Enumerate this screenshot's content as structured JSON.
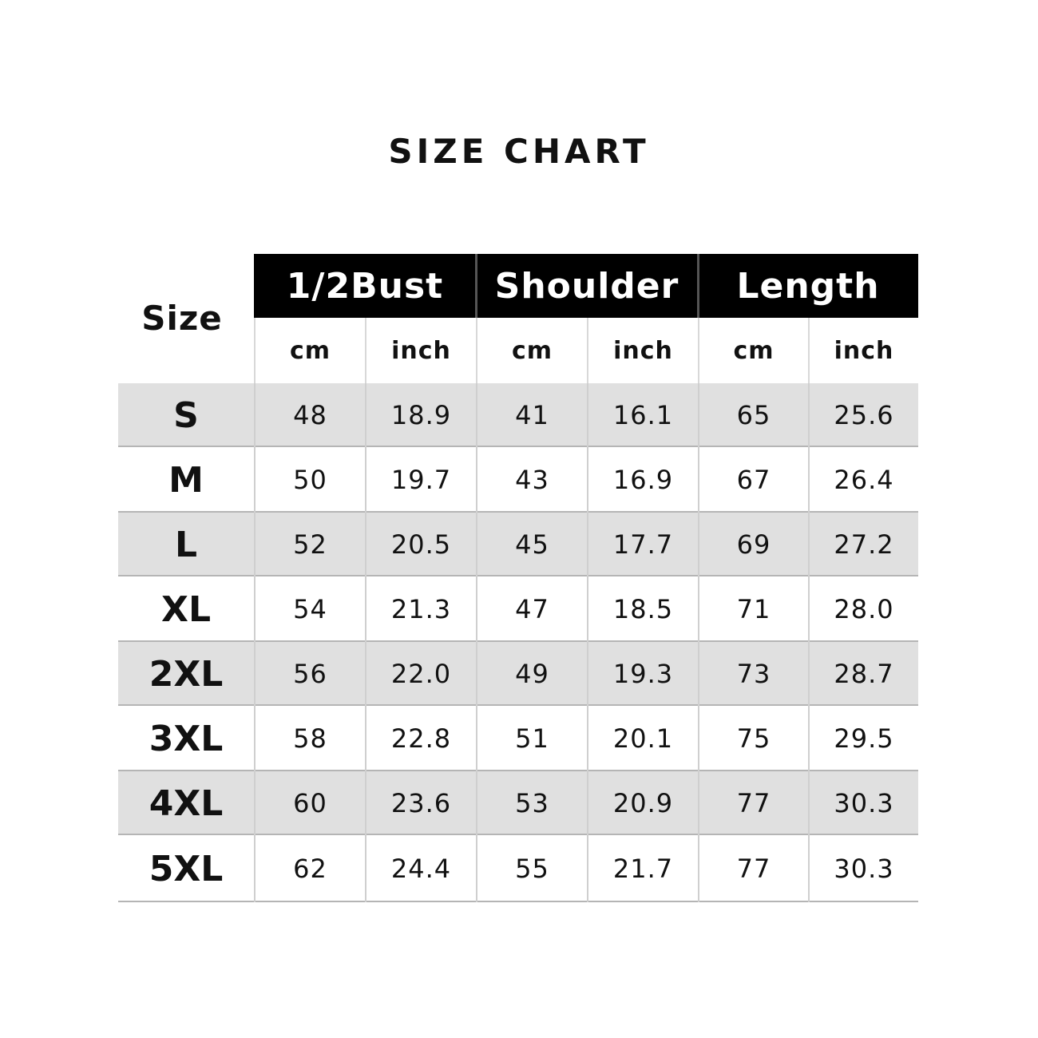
{
  "title": "SIZE CHART",
  "table": {
    "size_header": "Size",
    "groups": [
      "1/2Bust",
      "Shoulder",
      "Length"
    ],
    "units": [
      "cm",
      "inch",
      "cm",
      "inch",
      "cm",
      "inch"
    ],
    "row_shading": "alternating gray (#e0e0e0) starting with first row",
    "rows": [
      {
        "size": "S",
        "values": [
          "48",
          "18.9",
          "41",
          "16.1",
          "65",
          "25.6"
        ]
      },
      {
        "size": "M",
        "values": [
          "50",
          "19.7",
          "43",
          "16.9",
          "67",
          "26.4"
        ]
      },
      {
        "size": "L",
        "values": [
          "52",
          "20.5",
          "45",
          "17.7",
          "69",
          "27.2"
        ]
      },
      {
        "size": "XL",
        "values": [
          "54",
          "21.3",
          "47",
          "18.5",
          "71",
          "28.0"
        ]
      },
      {
        "size": "2XL",
        "values": [
          "56",
          "22.0",
          "49",
          "19.3",
          "73",
          "28.7"
        ]
      },
      {
        "size": "3XL",
        "values": [
          "58",
          "22.8",
          "51",
          "20.1",
          "75",
          "29.5"
        ]
      },
      {
        "size": "4XL",
        "values": [
          "60",
          "23.6",
          "53",
          "20.9",
          "77",
          "30.3"
        ]
      },
      {
        "size": "5XL",
        "values": [
          "62",
          "24.4",
          "55",
          "21.7",
          "77",
          "30.3"
        ]
      }
    ]
  },
  "colors": {
    "header_bg": "#000000",
    "header_text": "#ffffff",
    "stripe": "#e0e0e0"
  }
}
